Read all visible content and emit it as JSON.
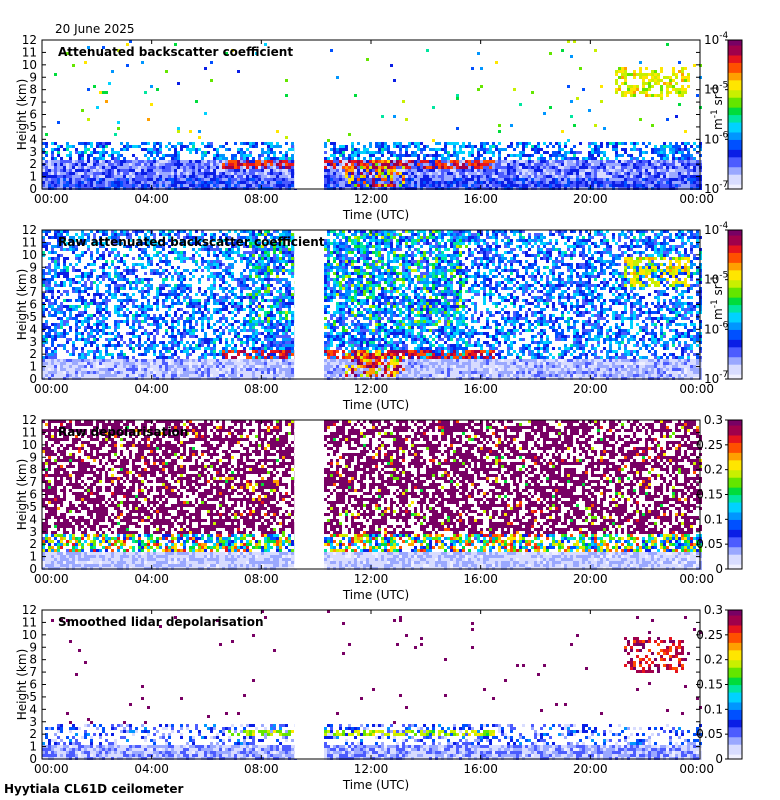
{
  "date_label": "20 June 2025",
  "footer_label": "Hyytiala CL61D ceilometer",
  "colors": {
    "background": "#ffffff",
    "axis": "#000000",
    "gap": "#ffffff",
    "jet": [
      "#f0f0ff",
      "#d8dcff",
      "#9aa8ff",
      "#4c5cff",
      "#0a1ee6",
      "#0050ff",
      "#0096ff",
      "#00d2ff",
      "#00e6a0",
      "#00dc3c",
      "#64e600",
      "#c8f000",
      "#ffe600",
      "#ffa000",
      "#ff5000",
      "#e6141e",
      "#a0004b",
      "#780064"
    ]
  },
  "chart_data": [
    {
      "id": "attenuated-backscatter",
      "type": "heatmap",
      "title": "Attenuated backscatter coefficient",
      "xlabel": "Time (UTC)",
      "ylabel": "Height (km)",
      "xlim": [
        0,
        24
      ],
      "ylim": [
        0,
        12
      ],
      "x_ticks": [
        "00:00",
        "04:00",
        "08:00",
        "12:00",
        "16:00",
        "20:00",
        "00:00"
      ],
      "y_ticks": [
        "0",
        "1",
        "2",
        "3",
        "4",
        "5",
        "6",
        "7",
        "8",
        "9",
        "10",
        "11",
        "12"
      ],
      "data_gap_hours": [
        9.2,
        10.2
      ],
      "colorbar": {
        "scale": "log",
        "range": [
          1e-07,
          0.0001
        ],
        "tick_labels": [
          "10-7",
          "10-6",
          "10-5",
          "10-4"
        ],
        "tick_bases": [
          "10",
          "10",
          "10",
          "10"
        ],
        "tick_exps": [
          "-7",
          "-6",
          "-5",
          "-4"
        ],
        "unit_main": "m",
        "unit_exp1": "-1",
        "unit_mid": "sr",
        "unit_exp2": "-1"
      },
      "features": [
        {
          "name": "boundary layer",
          "time_range_h": [
            0,
            24
          ],
          "height_km": [
            0,
            2.5
          ],
          "level": 0.3
        },
        {
          "name": "aerosol top layer",
          "time_range_h": [
            0,
            24
          ],
          "height_km": [
            2.5,
            4.0
          ],
          "level": 0.45
        },
        {
          "name": "cloud base layer",
          "time_range_h": [
            6.5,
            16.5
          ],
          "height_km": [
            1.8,
            2.4
          ],
          "level": 0.95
        },
        {
          "name": "convective cloud",
          "time_range_h": [
            11.0,
            13.2
          ],
          "height_km": [
            0.2,
            2.4
          ],
          "level": 1.0
        },
        {
          "name": "high cloud",
          "time_range_h": [
            20.8,
            23.6
          ],
          "height_km": [
            7.5,
            10.0
          ],
          "level": 0.6
        },
        {
          "name": "noise above boundary layer",
          "time_range_h": [
            0,
            24
          ],
          "height_km": [
            4,
            12
          ],
          "level": 0.5
        }
      ]
    },
    {
      "id": "raw-attenuated-backscatter",
      "type": "heatmap",
      "title": "Raw attenuated backscatter coefficient",
      "xlabel": "Time (UTC)",
      "ylabel": "Height (km)",
      "xlim": [
        0,
        24
      ],
      "ylim": [
        0,
        12
      ],
      "x_ticks": [
        "00:00",
        "04:00",
        "08:00",
        "12:00",
        "16:00",
        "20:00",
        "00:00"
      ],
      "y_ticks": [
        "0",
        "1",
        "2",
        "3",
        "4",
        "5",
        "6",
        "7",
        "8",
        "9",
        "10",
        "11",
        "12"
      ],
      "data_gap_hours": [
        9.2,
        10.2
      ],
      "colorbar": {
        "scale": "log",
        "range": [
          1e-07,
          0.0001
        ],
        "tick_labels": [
          "10-7",
          "10-6",
          "10-5",
          "10-4"
        ],
        "tick_bases": [
          "10",
          "10",
          "10",
          "10"
        ],
        "tick_exps": [
          "-7",
          "-6",
          "-5",
          "-4"
        ],
        "unit_main": "m",
        "unit_exp1": "-1",
        "unit_mid": "sr",
        "unit_exp2": "-1"
      },
      "features": [
        {
          "name": "dense noise field",
          "time_range_h": [
            0,
            24
          ],
          "height_km": [
            2,
            12
          ],
          "level": 0.3
        },
        {
          "name": "daytime high noise",
          "time_range_h": [
            7.5,
            15.5
          ],
          "height_km": [
            4,
            12
          ],
          "level": 0.55
        },
        {
          "name": "cloud base layer",
          "time_range_h": [
            6.5,
            16.5
          ],
          "height_km": [
            1.8,
            2.4
          ],
          "level": 0.95
        },
        {
          "name": "convective cloud",
          "time_range_h": [
            11.0,
            13.2
          ],
          "height_km": [
            0.2,
            2.4
          ],
          "level": 1.0
        },
        {
          "name": "high cloud",
          "time_range_h": [
            21.2,
            23.6
          ],
          "height_km": [
            7.5,
            10.0
          ],
          "level": 0.6
        }
      ]
    },
    {
      "id": "raw-depolarisation",
      "type": "heatmap",
      "title": "Raw depolarisation",
      "xlabel": "Time (UTC)",
      "ylabel": "Height (km)",
      "xlim": [
        0,
        24
      ],
      "ylim": [
        0,
        12
      ],
      "x_ticks": [
        "00:00",
        "04:00",
        "08:00",
        "12:00",
        "16:00",
        "20:00",
        "00:00"
      ],
      "y_ticks": [
        "0",
        "1",
        "2",
        "3",
        "4",
        "5",
        "6",
        "7",
        "8",
        "9",
        "10",
        "11",
        "12"
      ],
      "data_gap_hours": [
        9.2,
        10.2
      ],
      "colorbar": {
        "scale": "linear",
        "range": [
          0,
          0.3
        ],
        "tick_labels": [
          "0",
          "0.05",
          "0.1",
          "0.15",
          "0.2",
          "0.25",
          "0.3"
        ]
      },
      "features": [
        {
          "name": "saturated noise (purple)",
          "time_range_h": [
            0,
            24
          ],
          "height_km": [
            3,
            12
          ],
          "level": 1.0
        },
        {
          "name": "mixed layer",
          "time_range_h": [
            0,
            24
          ],
          "height_km": [
            1.5,
            3.0
          ],
          "level": 0.6
        },
        {
          "name": "low depolarisation near ground",
          "time_range_h": [
            0,
            24
          ],
          "height_km": [
            0,
            1.5
          ],
          "level": 0.2
        }
      ]
    },
    {
      "id": "smoothed-lidar-depolarisation",
      "type": "heatmap",
      "title": "Smoothed lidar depolarisation",
      "xlabel": "Time (UTC)",
      "ylabel": "Height (km)",
      "xlim": [
        0,
        24
      ],
      "ylim": [
        0,
        12
      ],
      "x_ticks": [
        "00:00",
        "04:00",
        "08:00",
        "12:00",
        "16:00",
        "20:00",
        "00:00"
      ],
      "y_ticks": [
        "0",
        "1",
        "2",
        "3",
        "4",
        "5",
        "6",
        "7",
        "8",
        "9",
        "10",
        "11",
        "12"
      ],
      "data_gap_hours": [
        9.2,
        10.2
      ],
      "colorbar": {
        "scale": "linear",
        "range": [
          0,
          0.3
        ],
        "tick_labels": [
          "0",
          "0.05",
          "0.1",
          "0.15",
          "0.2",
          "0.25",
          "0.3"
        ]
      },
      "features": [
        {
          "name": "boundary layer",
          "time_range_h": [
            0,
            24
          ],
          "height_km": [
            0,
            3.0
          ],
          "level": 0.2
        },
        {
          "name": "cloud base layer",
          "time_range_h": [
            6.5,
            16.5
          ],
          "height_km": [
            2.0,
            2.4
          ],
          "level": 0.7
        },
        {
          "name": "high ice cloud",
          "time_range_h": [
            21.2,
            23.4
          ],
          "height_km": [
            7.0,
            10.0
          ],
          "level": 1.0
        },
        {
          "name": "isolated sparse points",
          "time_range_h": [
            0,
            24
          ],
          "height_km": [
            3,
            12
          ],
          "level": 1.0
        }
      ]
    }
  ]
}
